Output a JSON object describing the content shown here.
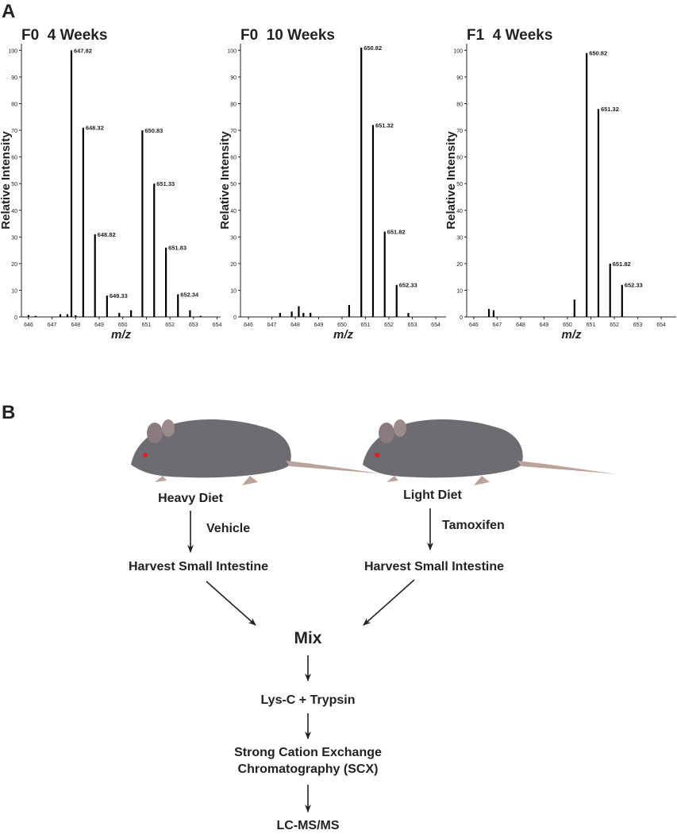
{
  "panel_labels": [
    "A",
    "B"
  ],
  "chart_data": [
    {
      "type": "stem",
      "title": "F0  4 Weeks",
      "x_label": "m/z",
      "y_label": "Relative Intensity",
      "xlim": [
        645.7,
        654.15
      ],
      "ylim": [
        0,
        102.5
      ],
      "xticks": [
        646,
        647,
        648,
        649,
        650,
        651,
        652,
        653,
        654
      ],
      "yticks": [
        0,
        10,
        20,
        30,
        40,
        50,
        60,
        70,
        80,
        90,
        100
      ],
      "color": "#000000",
      "series": [
        {
          "show_labels": true,
          "x": [
            647.82,
            648.32,
            648.82,
            649.33,
            650.83,
            651.33,
            651.83,
            652.34
          ],
          "values": [
            100,
            71,
            31,
            8,
            70,
            50,
            26,
            8.5
          ]
        },
        {
          "show_labels": false,
          "x": [
            646.0,
            646.3,
            647.35,
            647.65,
            648.0,
            649.85,
            650.35,
            652.85,
            653.3
          ],
          "values": [
            0.7,
            0.4,
            1,
            1,
            0.6,
            1.5,
            2.5,
            2.5,
            0.4
          ]
        }
      ]
    },
    {
      "type": "stem",
      "title": "F0  10 Weeks",
      "x_label": "m/z",
      "y_label": "Relative Intensity",
      "xlim": [
        645.66,
        654.44
      ],
      "ylim": [
        0,
        102.5
      ],
      "xticks": [
        646,
        647,
        648,
        649,
        650,
        651,
        652,
        653,
        654
      ],
      "yticks": [
        0,
        10,
        20,
        30,
        40,
        50,
        60,
        70,
        80,
        90,
        100
      ],
      "color": "#000000",
      "series": [
        {
          "show_labels": true,
          "x": [
            650.82,
            651.32,
            651.82,
            652.33
          ],
          "values": [
            101,
            72,
            32,
            12
          ]
        },
        {
          "show_labels": false,
          "x": [
            647.35,
            647.85,
            648.15,
            648.35,
            648.65,
            650.3,
            652.83
          ],
          "values": [
            1.5,
            2,
            4,
            1.5,
            1.5,
            4.5,
            1.5
          ]
        }
      ]
    },
    {
      "type": "stem",
      "title": "F1  4 Weeks",
      "x_label": "m/z",
      "y_label": "Relative Intensity",
      "xlim": [
        645.7,
        654.64
      ],
      "ylim": [
        0,
        102.5
      ],
      "xticks": [
        646,
        647,
        648,
        649,
        650,
        651,
        652,
        653,
        654
      ],
      "yticks": [
        0,
        10,
        20,
        30,
        40,
        50,
        60,
        70,
        80,
        90,
        100
      ],
      "color": "#000000",
      "series": [
        {
          "show_labels": true,
          "x": [
            650.82,
            651.32,
            651.82,
            652.33
          ],
          "values": [
            99,
            78,
            20,
            12
          ]
        },
        {
          "show_labels": false,
          "x": [
            646.65,
            646.85,
            650.3
          ],
          "values": [
            3,
            2.5,
            6.5
          ]
        }
      ]
    }
  ],
  "diagram": {
    "left": {
      "diet": "Heavy Diet",
      "treatment": "Vehicle",
      "harvest": "Harvest Small Intestine"
    },
    "right": {
      "diet": "Light Diet",
      "treatment": "Tamoxifen",
      "harvest": "Harvest Small Intestine"
    },
    "mix": "Mix",
    "digest": "Lys-C + Trypsin",
    "fractionation": [
      "Strong Cation Exchange",
      "Chromatography (SCX)"
    ],
    "analysis": "LC-MS/MS"
  }
}
